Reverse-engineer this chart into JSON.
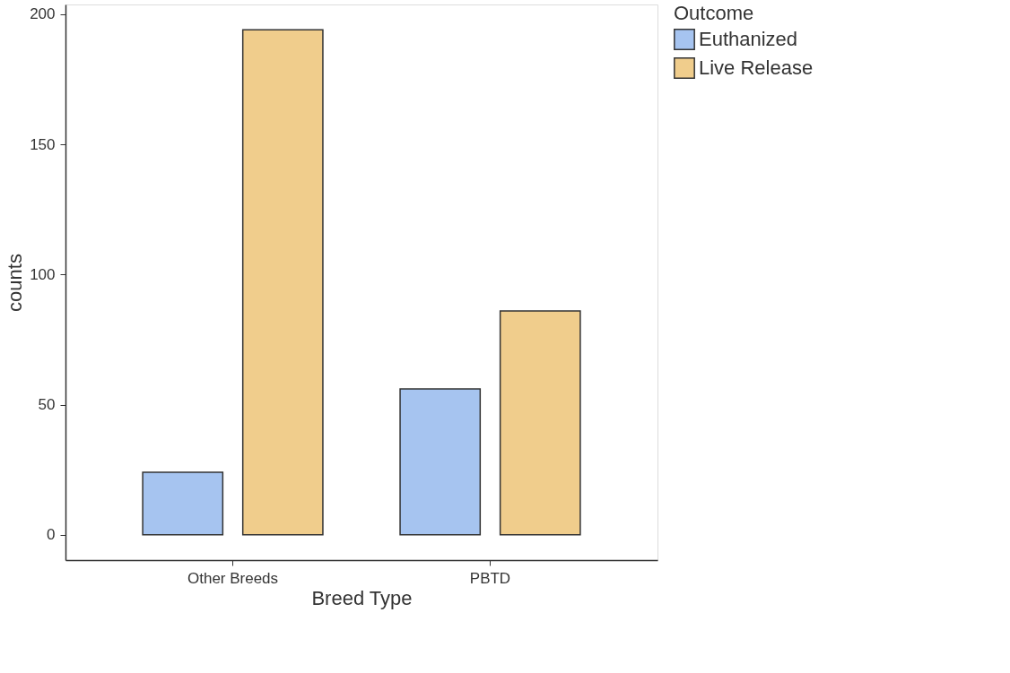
{
  "chart_data": {
    "type": "bar",
    "xlabel": "Breed Type",
    "ylabel": "counts",
    "legend_title": "Outcome",
    "categories": [
      "Other Breeds",
      "PBTD"
    ],
    "series": [
      {
        "name": "Euthanized",
        "color": "#a6c4f0",
        "values": [
          24,
          56
        ]
      },
      {
        "name": "Live Release",
        "color": "#f0cd8c",
        "values": [
          194,
          86
        ]
      }
    ],
    "ylim": [
      -9.7,
      203.7
    ],
    "yticks": [
      0,
      50,
      100,
      150,
      200
    ],
    "grid": false,
    "legend": "right"
  }
}
